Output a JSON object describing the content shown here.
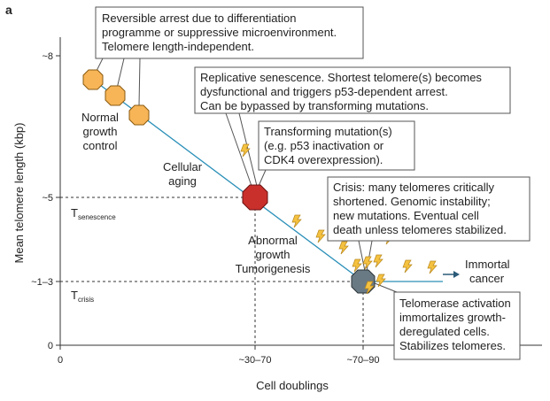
{
  "panel_label": "a",
  "axes": {
    "y_label": "Mean telomere length (kbp)",
    "x_label": "Cell doublings",
    "y_ticks": [
      "~8",
      "~5",
      "~1–3",
      "0"
    ],
    "x_ticks": [
      "0",
      "~30–70",
      "~70–90"
    ]
  },
  "thresholds": {
    "senescence": {
      "symbol": "T",
      "subscript": "senescence"
    },
    "crisis": {
      "symbol": "T",
      "subscript": "crisis"
    }
  },
  "labels": {
    "normal": [
      "Normal",
      "growth",
      "control"
    ],
    "aging": [
      "Cellular",
      "aging"
    ],
    "abnormal": [
      "Abnormal",
      "growth",
      "Tumorigenesis"
    ],
    "immortal": [
      "Immortal",
      "cancer"
    ]
  },
  "callouts": [
    [
      "Reversible arrest due to differentiation",
      "programme or suppressive microenvironment.",
      "Telomere length-independent."
    ],
    [
      "Replicative senescence. Shortest telomere(s) becomes",
      "dysfunctional and triggers p53-dependent arrest.",
      "Can be bypassed by transforming mutations."
    ],
    [
      "Transforming mutation(s)",
      "(e.g. p53 inactivation or",
      "CDK4 overexpression)."
    ],
    [
      "Crisis: many telomeres critically",
      "shortened. Genomic instability;",
      "new mutations. Eventual cell",
      "death unless telomeres stabilized."
    ],
    [
      "Telomerase activation",
      "immortalizes growth-",
      "deregulated cells.",
      "Stabilizes telomeres."
    ]
  ]
}
